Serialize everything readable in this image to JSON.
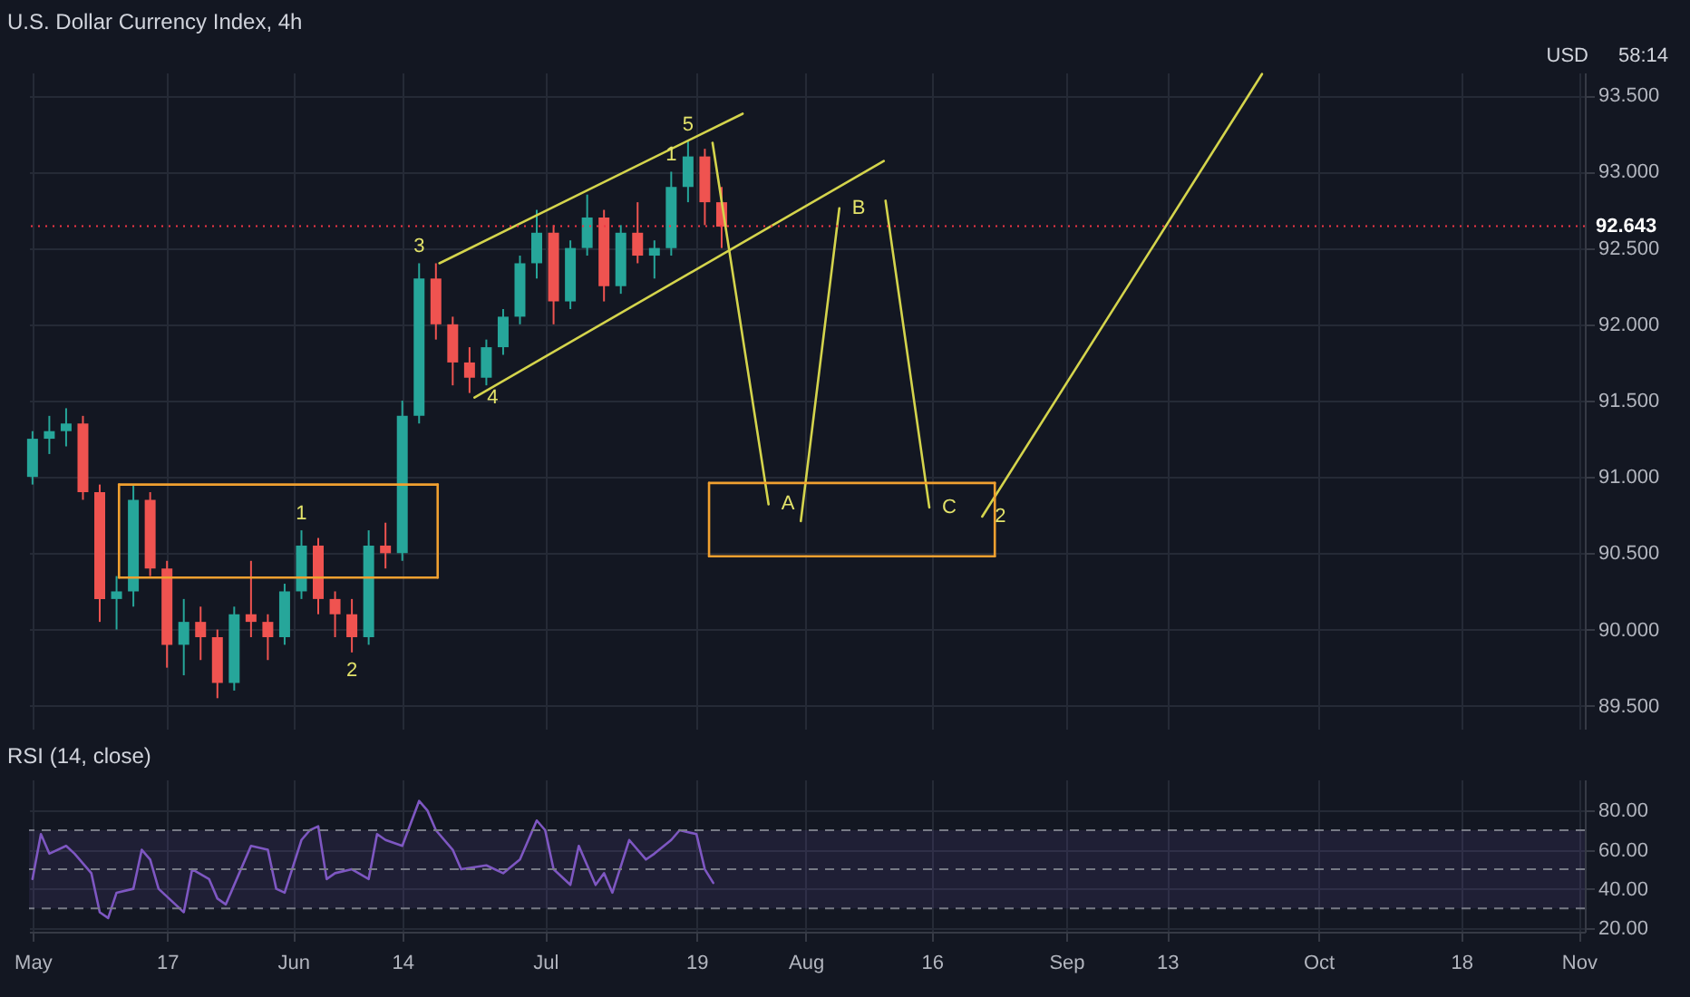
{
  "chart_data": [
    {
      "type": "candlestick",
      "title": "U.S. Dollar Currency Index, 4h",
      "x": [
        "--05-01",
        "--05-03",
        "--05-05",
        "--05-07",
        "--05-09",
        "--05-11",
        "--05-13",
        "--05-15",
        "--05-17",
        "--05-19",
        "--05-21",
        "--05-23",
        "--05-25",
        "--05-27",
        "--05-29",
        "--05-31",
        "--06-02",
        "--06-04",
        "--06-06",
        "--06-08",
        "--06-10",
        "--06-12",
        "--06-14",
        "--06-16",
        "--06-18",
        "--06-20",
        "--06-22",
        "--06-24",
        "--06-26",
        "--06-28",
        "--06-30",
        "--07-02",
        "--07-04",
        "--07-06",
        "--07-08",
        "--07-10",
        "--07-12",
        "--07-14",
        "--07-16",
        "--07-18",
        "--07-20",
        "--07-22"
      ],
      "ohlc": [
        [
          91.0,
          91.3,
          90.95,
          91.25
        ],
        [
          91.25,
          91.4,
          91.15,
          91.3
        ],
        [
          91.3,
          91.45,
          91.2,
          91.35
        ],
        [
          91.35,
          91.4,
          90.85,
          90.9
        ],
        [
          90.9,
          90.95,
          90.05,
          90.2
        ],
        [
          90.2,
          90.35,
          90.0,
          90.25
        ],
        [
          90.25,
          90.95,
          90.15,
          90.85
        ],
        [
          90.85,
          90.9,
          90.35,
          90.4
        ],
        [
          90.4,
          90.45,
          89.75,
          89.9
        ],
        [
          89.9,
          90.2,
          89.7,
          90.05
        ],
        [
          90.05,
          90.15,
          89.8,
          89.95
        ],
        [
          89.95,
          90.0,
          89.55,
          89.65
        ],
        [
          89.65,
          90.15,
          89.6,
          90.1
        ],
        [
          90.1,
          90.45,
          89.95,
          90.05
        ],
        [
          90.05,
          90.1,
          89.8,
          89.95
        ],
        [
          89.95,
          90.3,
          89.9,
          90.25
        ],
        [
          90.25,
          90.65,
          90.2,
          90.55
        ],
        [
          90.55,
          90.6,
          90.1,
          90.2
        ],
        [
          90.2,
          90.25,
          89.95,
          90.1
        ],
        [
          90.1,
          90.2,
          89.85,
          89.95
        ],
        [
          89.95,
          90.65,
          89.9,
          90.55
        ],
        [
          90.55,
          90.7,
          90.4,
          90.5
        ],
        [
          90.5,
          91.5,
          90.45,
          91.4
        ],
        [
          91.4,
          92.4,
          91.35,
          92.3
        ],
        [
          92.3,
          92.4,
          91.9,
          92.0
        ],
        [
          92.0,
          92.05,
          91.6,
          91.75
        ],
        [
          91.75,
          91.85,
          91.55,
          91.65
        ],
        [
          91.65,
          91.9,
          91.6,
          91.85
        ],
        [
          91.85,
          92.1,
          91.8,
          92.05
        ],
        [
          92.05,
          92.45,
          92.0,
          92.4
        ],
        [
          92.4,
          92.75,
          92.3,
          92.6
        ],
        [
          92.6,
          92.65,
          92.0,
          92.15
        ],
        [
          92.15,
          92.55,
          92.1,
          92.5
        ],
        [
          92.5,
          92.85,
          92.45,
          92.7
        ],
        [
          92.7,
          92.75,
          92.15,
          92.25
        ],
        [
          92.25,
          92.65,
          92.2,
          92.6
        ],
        [
          92.6,
          92.8,
          92.4,
          92.45
        ],
        [
          92.45,
          92.55,
          92.3,
          92.5
        ],
        [
          92.5,
          93.0,
          92.45,
          92.9
        ],
        [
          92.9,
          93.2,
          92.8,
          93.1
        ],
        [
          93.1,
          93.15,
          92.65,
          92.8
        ],
        [
          92.8,
          92.9,
          92.5,
          92.64
        ]
      ],
      "series": [
        {
          "type": "line",
          "color": "#d4d44c",
          "x": [
            "--06-18T10:00",
            "--07-24T12:00"
          ],
          "values": [
            92.4,
            93.38
          ]
        },
        {
          "type": "line",
          "color": "#d4d44c",
          "x": [
            "--06-22T14:00",
            "--08-10T07:00"
          ],
          "values": [
            91.52,
            93.07
          ]
        },
        {
          "type": "line",
          "color": "#d4d44c",
          "x": [
            "--07-20T22:00",
            "--07-27T14:00"
          ],
          "values": [
            93.19,
            90.82
          ]
        },
        {
          "type": "line",
          "color": "#d4d44c",
          "x": [
            "--07-31T10:00",
            "--08-05T00:00"
          ],
          "values": [
            90.71,
            92.76
          ]
        },
        {
          "type": "line",
          "color": "#d4d44c",
          "x": [
            "--08-10T12:00",
            "--08-15T17:00"
          ],
          "values": [
            92.81,
            90.8
          ]
        },
        {
          "type": "line",
          "color": "#d4d44c",
          "x": [
            "--08-22T00:00",
            "--09-24T07:00"
          ],
          "values": [
            90.74,
            93.64
          ]
        },
        {
          "type": "line",
          "color": "#f0a030",
          "x": [
            "--05-11T07:00",
            "--06-18T05:00"
          ],
          "values": [
            90.95,
            90.95
          ]
        },
        {
          "type": "line",
          "color": "#f0a030",
          "x": [
            "--05-11T07:00",
            "--06-18T05:00"
          ],
          "values": [
            90.34,
            90.34
          ]
        },
        {
          "type": "line",
          "color": "#f0a030",
          "x": [
            "--05-11T07:00",
            "--05-11T07:00"
          ],
          "values": [
            90.34,
            90.95
          ]
        },
        {
          "type": "line",
          "color": "#f0a030",
          "x": [
            "--06-18T05:00",
            "--06-18T05:00"
          ],
          "values": [
            90.34,
            90.95
          ]
        },
        {
          "type": "line",
          "color": "#f0a030",
          "x": [
            "--07-20T12:00",
            "--08-23T12:00"
          ],
          "values": [
            90.96,
            90.96
          ]
        },
        {
          "type": "line",
          "color": "#f0a030",
          "x": [
            "--07-20T12:00",
            "--08-23T12:00"
          ],
          "values": [
            90.48,
            90.48
          ]
        },
        {
          "type": "line",
          "color": "#f0a030",
          "x": [
            "--07-20T12:00",
            "--07-20T12:00"
          ],
          "values": [
            90.48,
            90.96
          ]
        },
        {
          "type": "line",
          "color": "#f0a030",
          "x": [
            "--08-23T12:00",
            "--08-23T12:00"
          ],
          "values": [
            90.48,
            90.96
          ]
        }
      ],
      "xlim": [
        "--04-30T14:00",
        "--11-01T17:00"
      ],
      "xticks": [
        {
          "value": "--05-01",
          "label": "May"
        },
        {
          "value": "--05-17",
          "label": "17"
        },
        {
          "value": "--06-01",
          "label": "Jun"
        },
        {
          "value": "--06-14",
          "label": "14"
        },
        {
          "value": "--07-01",
          "label": "Jul"
        },
        {
          "value": "--07-19",
          "label": "19"
        },
        {
          "value": "--08-01",
          "label": "Aug"
        },
        {
          "value": "--08-16",
          "label": "16"
        },
        {
          "value": "--09-01",
          "label": "Sep"
        },
        {
          "value": "--09-13",
          "label": "13"
        },
        {
          "value": "--10-01",
          "label": "Oct"
        },
        {
          "value": "--10-18",
          "label": "18"
        },
        {
          "value": "--11-01",
          "label": "Nov"
        }
      ],
      "ylim": [
        89.35,
        93.65
      ],
      "yticks": [
        {
          "value": 89.5,
          "label": "89.500"
        },
        {
          "value": 90,
          "label": "90.000"
        },
        {
          "value": 90.5,
          "label": "90.500"
        },
        {
          "value": 91,
          "label": "91.000"
        },
        {
          "value": 91.5,
          "label": "91.500"
        },
        {
          "value": 92,
          "label": "92.000"
        },
        {
          "value": 92.5,
          "label": "92.500"
        },
        {
          "value": 93,
          "label": "93.000"
        },
        {
          "value": 93.5,
          "label": "93.500"
        }
      ],
      "grid": true,
      "tick_labels": "y",
      "ref_lines": [
        {
          "axis": "y",
          "value": 92.643,
          "label": "92.643",
          "color": "#f23645",
          "line_style": "dotted"
        }
      ],
      "annotations": [
        "USD",
        "58:14",
        {
          "text": "1",
          "x": "--07-16",
          "y": 93.0
        },
        {
          "text": "5",
          "x": "--07-18",
          "y": 93.2
        },
        {
          "text": "3",
          "x": "--06-16",
          "y": 92.4
        },
        {
          "text": "4",
          "x": "--06-22T14:00",
          "y": 91.52
        },
        {
          "text": "1",
          "x": "--06-02",
          "y": 90.65
        },
        {
          "text": "2",
          "x": "--06-08",
          "y": 89.85
        },
        {
          "text": "A",
          "x": "--07-27T14:00",
          "y": 90.82
        },
        {
          "text": "B",
          "x": "--08-05T00:00",
          "y": 92.76
        },
        {
          "text": "C",
          "x": "--08-15T17:00",
          "y": 90.8
        },
        {
          "text": "2",
          "x": "--08-22T00:00",
          "y": 90.74
        }
      ]
    },
    {
      "type": "line",
      "title": "RSI (14, close)",
      "series": [
        {
          "color": "#7e57c2",
          "x": [
            "--05-01",
            "--05-02",
            "--05-03",
            "--05-05",
            "--05-06",
            "--05-08",
            "--05-09",
            "--05-10",
            "--05-11",
            "--05-13",
            "--05-14",
            "--05-15",
            "--05-16",
            "--05-18",
            "--05-19",
            "--05-20",
            "--05-22",
            "--05-23",
            "--05-24",
            "--05-27",
            "--05-29",
            "--05-30",
            "--05-31",
            "--06-02",
            "--06-03",
            "--06-04",
            "--06-05",
            "--06-06",
            "--06-08",
            "--06-10",
            "--06-11",
            "--06-12",
            "--06-14",
            "--06-16",
            "--06-17",
            "--06-18",
            "--06-20",
            "--06-21",
            "--06-24",
            "--06-26",
            "--06-28",
            "--06-30",
            "--07-01",
            "--07-02",
            "--07-04",
            "--07-05",
            "--07-07",
            "--07-08",
            "--07-09",
            "--07-11",
            "--07-13",
            "--07-14",
            "--07-16",
            "--07-17",
            "--07-19",
            "--07-20",
            "--07-21"
          ],
          "values": [
            45,
            68,
            58,
            62,
            58,
            48,
            28,
            25,
            38,
            40,
            60,
            55,
            40,
            32,
            28,
            50,
            45,
            35,
            32,
            62,
            60,
            40,
            38,
            65,
            70,
            72,
            45,
            48,
            50,
            45,
            68,
            65,
            62,
            85,
            80,
            70,
            60,
            50,
            52,
            48,
            55,
            75,
            70,
            50,
            42,
            62,
            42,
            48,
            38,
            65,
            55,
            58,
            65,
            70,
            68,
            50,
            43
          ]
        }
      ],
      "xlim": [
        "--04-30T14:00",
        "--11-01T17:00"
      ],
      "xticks": [
        {
          "value": "--05-01",
          "label": "May"
        },
        {
          "value": "--05-17",
          "label": "17"
        },
        {
          "value": "--06-01",
          "label": "Jun"
        },
        {
          "value": "--06-14",
          "label": "14"
        },
        {
          "value": "--07-01",
          "label": "Jul"
        },
        {
          "value": "--07-19",
          "label": "19"
        },
        {
          "value": "--08-01",
          "label": "Aug"
        },
        {
          "value": "--08-16",
          "label": "16"
        },
        {
          "value": "--09-01",
          "label": "Sep"
        },
        {
          "value": "--09-13",
          "label": "13"
        },
        {
          "value": "--10-01",
          "label": "Oct"
        },
        {
          "value": "--10-18",
          "label": "18"
        },
        {
          "value": "--11-01",
          "label": "Nov"
        }
      ],
      "ylim": [
        18,
        96
      ],
      "yticks": [
        {
          "value": 20,
          "label": "20.00"
        },
        {
          "value": 40,
          "label": "40.00"
        },
        {
          "value": 60,
          "label": "60.00"
        },
        {
          "value": 80,
          "label": "80.00"
        }
      ],
      "grid": true,
      "ref_lines": [
        {
          "axis": "y",
          "value": 70,
          "color": "#787b86",
          "line_style": "dashed"
        },
        {
          "axis": "y",
          "value": 50,
          "color": "#787b86",
          "line_style": "dashed"
        },
        {
          "axis": "y",
          "value": 30,
          "color": "#787b86",
          "line_style": "dashed"
        }
      ],
      "bands": [
        {
          "axis": "y",
          "from": 30,
          "to": 70,
          "color": "#7e57c2"
        }
      ]
    }
  ]
}
